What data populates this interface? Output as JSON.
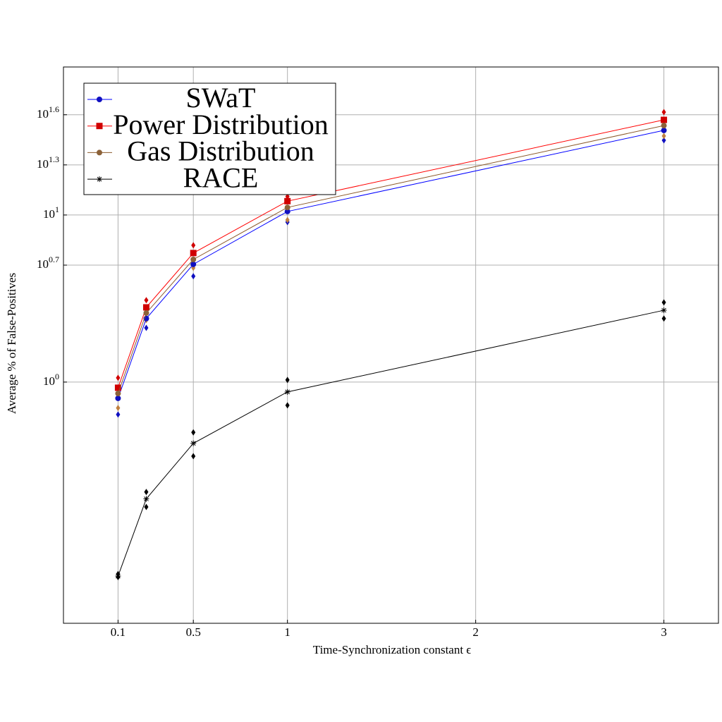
{
  "chart_data": {
    "type": "line",
    "x_label": "Time-Synchronization constant ϵ",
    "y_label": "Average % of False-Positives",
    "x": [
      0.1,
      0.25,
      0.5,
      1,
      3
    ],
    "xlim": [
      -0.19,
      3.29
    ],
    "xticks": [
      0.1,
      0.5,
      1,
      2,
      3
    ],
    "ylim": [
      0.036,
      76.9
    ],
    "log_y": true,
    "yticks": [
      {
        "value": 1,
        "label": "10^0"
      },
      {
        "value": 5.012,
        "label": "10^0.7"
      },
      {
        "value": 10,
        "label": "10^1"
      },
      {
        "value": 19.95,
        "label": "10^1.3"
      },
      {
        "value": 39.81,
        "label": "10^1.6"
      }
    ],
    "grid": true,
    "legend": "upper left",
    "series": [
      {
        "name": "SWaT",
        "color": "#0000ff",
        "marker": "circle",
        "marker_color": "#1010c0",
        "values": [
          0.8,
          2.4,
          5.07,
          10.5,
          32.1
        ],
        "low": [
          0.64,
          2.11,
          4.3,
          9.07,
          28.0
        ]
      },
      {
        "name": "Power Distribution",
        "color": "#ff0000",
        "marker": "square",
        "marker_color": "#d00000",
        "values": [
          0.925,
          2.8,
          5.92,
          12.1,
          37.1
        ],
        "high": [
          1.06,
          3.09,
          6.59,
          12.9,
          41.3
        ]
      },
      {
        "name": "Gas Distribution",
        "color": "#8b5a2b",
        "marker": "circle",
        "marker_color": "#8c6239",
        "low_color": "#c08040",
        "values": [
          0.855,
          2.59,
          5.42,
          11.1,
          34.3
        ],
        "low": [
          0.7,
          2.35,
          4.83,
          9.34,
          29.7
        ]
      },
      {
        "name": "RACE",
        "color": "#000000",
        "marker": "star",
        "marker_color": "#000000",
        "values": [
          0.069,
          0.2,
          0.43,
          0.873,
          2.69
        ],
        "low": [
          0.068,
          0.179,
          0.36,
          0.726,
          2.4
        ],
        "high": [
          0.071,
          0.22,
          0.5,
          1.03,
          3.0
        ]
      }
    ]
  }
}
